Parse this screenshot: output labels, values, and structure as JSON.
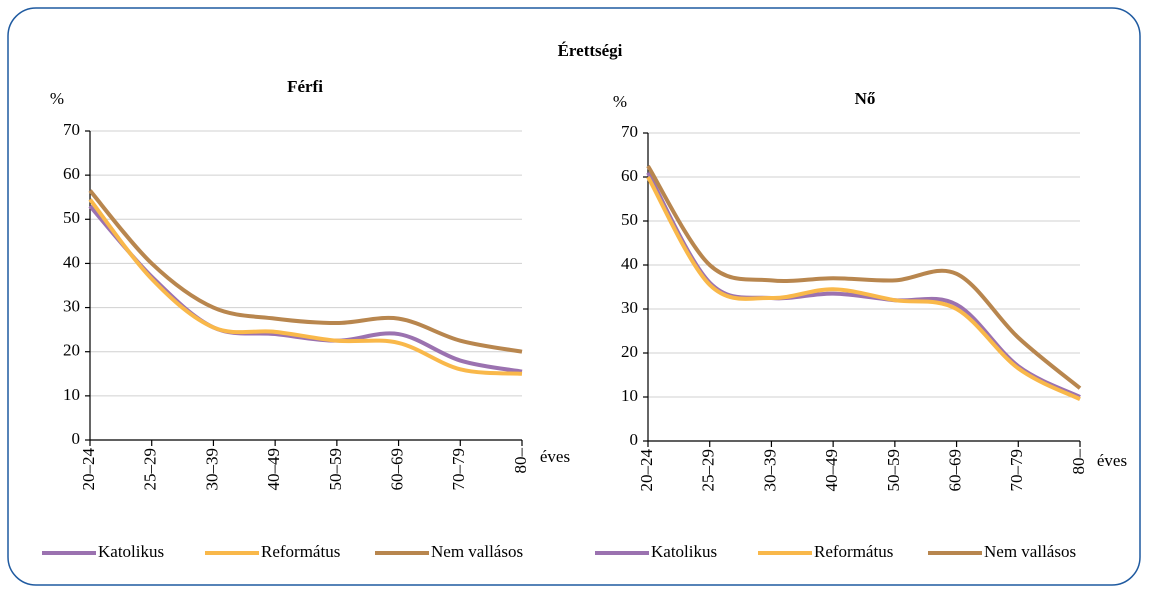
{
  "title": "Érettségi",
  "chart_data": [
    {
      "type": "line",
      "title": "Férfi",
      "y_label": "%",
      "x_label": "éves",
      "categories": [
        "20–24",
        "25–29",
        "30–39",
        "40–49",
        "50–59",
        "60–69",
        "70–79",
        "80–"
      ],
      "series": [
        {
          "name": "Katolikus",
          "color": "#9b72b0",
          "values": [
            53,
            37,
            25.5,
            24,
            22.5,
            24,
            18,
            15.5
          ]
        },
        {
          "name": "Református",
          "color": "#f9b84a",
          "values": [
            54.5,
            36.5,
            25.5,
            24.5,
            22.5,
            22,
            16,
            15
          ]
        },
        {
          "name": "Nem vallásos",
          "color": "#b8864e",
          "values": [
            56.5,
            40,
            30,
            27.5,
            26.5,
            27.5,
            22.5,
            20
          ]
        }
      ],
      "ylim": [
        0,
        70
      ],
      "yticks": [
        0,
        10,
        20,
        30,
        40,
        50,
        60,
        70
      ],
      "grid": true
    },
    {
      "type": "line",
      "title": "Nő",
      "y_label": "%",
      "x_label": "éves",
      "categories": [
        "20–24",
        "25–29",
        "30–39",
        "40–49",
        "50–59",
        "60–69",
        "70–79",
        "80–"
      ],
      "series": [
        {
          "name": "Katolikus",
          "color": "#9b72b0",
          "values": [
            61,
            36,
            32.5,
            33.5,
            32,
            31,
            17,
            10
          ]
        },
        {
          "name": "Református",
          "color": "#f9b84a",
          "values": [
            60,
            35.5,
            32.5,
            34.5,
            32,
            30,
            16.5,
            9.5
          ]
        },
        {
          "name": "Nem vallásos",
          "color": "#b8864e",
          "values": [
            62.5,
            40,
            36.5,
            37,
            36.5,
            38,
            23.5,
            12
          ]
        }
      ],
      "ylim": [
        0,
        70
      ],
      "yticks": [
        0,
        10,
        20,
        30,
        40,
        50,
        60,
        70
      ],
      "grid": true
    }
  ]
}
